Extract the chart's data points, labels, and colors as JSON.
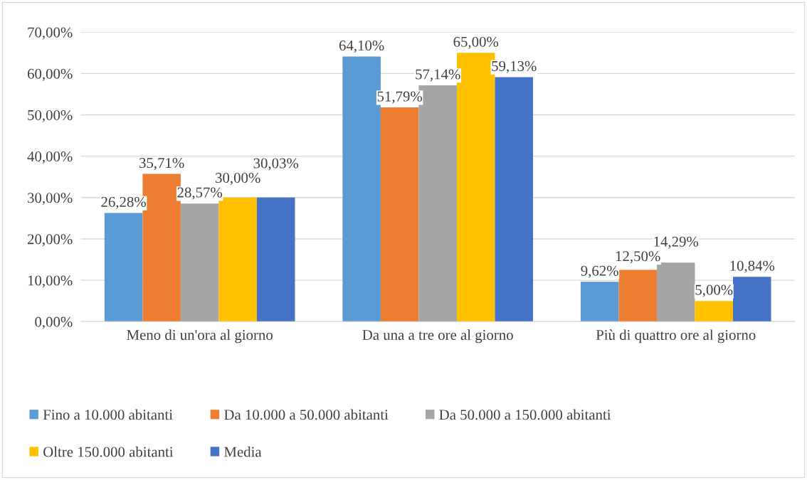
{
  "chart_data": {
    "type": "bar",
    "categories": [
      "Meno di un'ora al giorno",
      "Da una a tre ore al giorno",
      "Più di quattro ore al giorno"
    ],
    "series": [
      {
        "name": "Fino a 10.000 abitanti",
        "color": "#5b9bd5",
        "values": [
          26.28,
          64.1,
          9.62
        ],
        "value_labels": [
          "26,28%",
          "64,10%",
          "9,62%"
        ]
      },
      {
        "name": "Da 10.000 a 50.000 abitanti",
        "color": "#ed7d31",
        "values": [
          35.71,
          51.79,
          12.5
        ],
        "value_labels": [
          "35,71%",
          "51,79%",
          "12,50%"
        ]
      },
      {
        "name": "Da 50.000 a 150.000 abitanti",
        "color": "#a5a5a5",
        "values": [
          28.57,
          57.14,
          14.29
        ],
        "value_labels": [
          "28,57%",
          "57,14%",
          "14,29%"
        ]
      },
      {
        "name": "Oltre 150.000 abitanti",
        "color": "#ffc000",
        "values": [
          30.0,
          65.0,
          5.0
        ],
        "value_labels": [
          "30,00%",
          "65,00%",
          "5,00%"
        ]
      },
      {
        "name": "Media",
        "color": "#4472c4",
        "values": [
          30.03,
          59.13,
          10.84
        ],
        "value_labels": [
          "30,03%",
          "59,13%",
          "10,84%"
        ]
      }
    ],
    "ylim": [
      0,
      70
    ],
    "yticks": [
      {
        "value": 0,
        "label": "0,00%"
      },
      {
        "value": 10,
        "label": "10,00%"
      },
      {
        "value": 20,
        "label": "20,00%"
      },
      {
        "value": 30,
        "label": "30,00%"
      },
      {
        "value": 40,
        "label": "40,00%"
      },
      {
        "value": 50,
        "label": "50,00%"
      },
      {
        "value": 60,
        "label": "60,00%"
      },
      {
        "value": 70,
        "label": "70,00%"
      }
    ],
    "grid": "y",
    "legend": "bottom"
  }
}
